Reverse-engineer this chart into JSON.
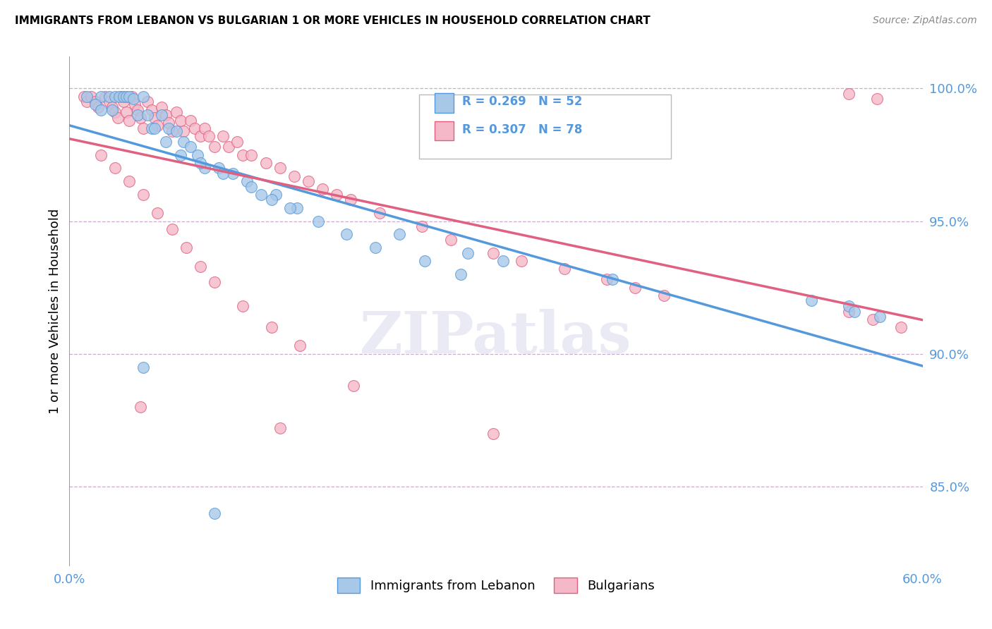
{
  "title": "IMMIGRANTS FROM LEBANON VS BULGARIAN 1 OR MORE VEHICLES IN HOUSEHOLD CORRELATION CHART",
  "source": "Source: ZipAtlas.com",
  "ylabel": "1 or more Vehicles in Household",
  "xlim": [
    0.0,
    0.6
  ],
  "ylim": [
    0.82,
    1.012
  ],
  "xtick_labels": [
    "0.0%",
    "60.0%"
  ],
  "ytick_labels": [
    "85.0%",
    "90.0%",
    "95.0%",
    "100.0%"
  ],
  "ytick_values": [
    0.85,
    0.9,
    0.95,
    1.0
  ],
  "xtick_values": [
    0.0,
    0.6
  ],
  "legend_label1": "Immigrants from Lebanon",
  "legend_label2": "Bulgarians",
  "R1": 0.269,
  "N1": 52,
  "R2": 0.307,
  "N2": 78,
  "color1": "#a8c8e8",
  "color2": "#f4b8c8",
  "line_color1": "#5599dd",
  "line_color2": "#e06080",
  "watermark": "ZIPatlas",
  "blue_x": [
    0.022,
    0.028,
    0.032,
    0.035,
    0.038,
    0.04,
    0.042,
    0.045,
    0.048,
    0.052,
    0.055,
    0.058,
    0.065,
    0.07,
    0.075,
    0.08,
    0.085,
    0.09,
    0.095,
    0.105,
    0.115,
    0.125,
    0.135,
    0.145,
    0.16,
    0.175,
    0.195,
    0.215,
    0.25,
    0.275,
    0.012,
    0.018,
    0.022,
    0.03,
    0.06,
    0.068,
    0.078,
    0.092,
    0.108,
    0.128,
    0.142,
    0.155,
    0.232,
    0.28,
    0.305,
    0.382,
    0.522,
    0.548,
    0.552,
    0.57,
    0.052,
    0.102
  ],
  "blue_y": [
    0.997,
    0.997,
    0.997,
    0.997,
    0.997,
    0.997,
    0.997,
    0.996,
    0.99,
    0.997,
    0.99,
    0.985,
    0.99,
    0.985,
    0.984,
    0.98,
    0.978,
    0.975,
    0.97,
    0.97,
    0.968,
    0.965,
    0.96,
    0.96,
    0.955,
    0.95,
    0.945,
    0.94,
    0.935,
    0.93,
    0.997,
    0.994,
    0.992,
    0.992,
    0.985,
    0.98,
    0.975,
    0.972,
    0.968,
    0.963,
    0.958,
    0.955,
    0.945,
    0.938,
    0.935,
    0.928,
    0.92,
    0.918,
    0.916,
    0.914,
    0.895,
    0.84
  ],
  "pink_x": [
    0.01,
    0.012,
    0.015,
    0.018,
    0.02,
    0.025,
    0.028,
    0.03,
    0.032,
    0.034,
    0.036,
    0.038,
    0.04,
    0.042,
    0.044,
    0.046,
    0.048,
    0.05,
    0.052,
    0.055,
    0.058,
    0.06,
    0.062,
    0.065,
    0.068,
    0.07,
    0.072,
    0.075,
    0.078,
    0.08,
    0.085,
    0.088,
    0.092,
    0.095,
    0.098,
    0.102,
    0.108,
    0.112,
    0.118,
    0.122,
    0.128,
    0.138,
    0.148,
    0.158,
    0.168,
    0.178,
    0.188,
    0.198,
    0.218,
    0.248,
    0.268,
    0.298,
    0.318,
    0.348,
    0.378,
    0.398,
    0.418,
    0.548,
    0.565,
    0.585,
    0.022,
    0.032,
    0.042,
    0.052,
    0.062,
    0.072,
    0.082,
    0.092,
    0.102,
    0.122,
    0.142,
    0.162,
    0.2,
    0.298,
    0.548,
    0.568,
    0.05,
    0.148
  ],
  "pink_y": [
    0.997,
    0.995,
    0.997,
    0.995,
    0.993,
    0.997,
    0.995,
    0.993,
    0.991,
    0.989,
    0.997,
    0.995,
    0.991,
    0.988,
    0.997,
    0.994,
    0.992,
    0.989,
    0.985,
    0.995,
    0.992,
    0.989,
    0.986,
    0.993,
    0.99,
    0.987,
    0.984,
    0.991,
    0.988,
    0.984,
    0.988,
    0.985,
    0.982,
    0.985,
    0.982,
    0.978,
    0.982,
    0.978,
    0.98,
    0.975,
    0.975,
    0.972,
    0.97,
    0.967,
    0.965,
    0.962,
    0.96,
    0.958,
    0.953,
    0.948,
    0.943,
    0.938,
    0.935,
    0.932,
    0.928,
    0.925,
    0.922,
    0.916,
    0.913,
    0.91,
    0.975,
    0.97,
    0.965,
    0.96,
    0.953,
    0.947,
    0.94,
    0.933,
    0.927,
    0.918,
    0.91,
    0.903,
    0.888,
    0.87,
    0.998,
    0.996,
    0.88,
    0.872
  ]
}
